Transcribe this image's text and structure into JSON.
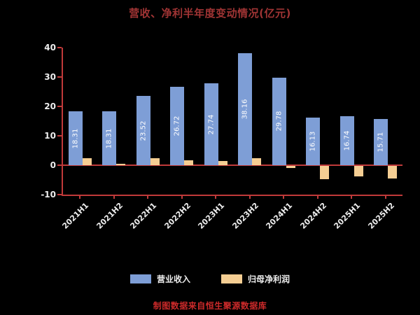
{
  "chart_data": {
    "type": "bar",
    "title": "营收、净利半年度变动情况(亿元)",
    "footer": "制图数据来自恒生聚源数据库",
    "categories": [
      "2021H1",
      "2021H2",
      "2022H1",
      "2022H2",
      "2023H1",
      "2023H2",
      "2024H1",
      "2024H2",
      "2025H1",
      "2025H2"
    ],
    "series": [
      {
        "name": "营业收入",
        "color": "#7E9ED6",
        "values": [
          18.31,
          18.31,
          23.52,
          26.72,
          27.74,
          38.16,
          29.78,
          16.13,
          16.74,
          15.71
        ],
        "labels_visible": true
      },
      {
        "name": "归母净利润",
        "color": "#F5CE93",
        "values": [
          2.4,
          0.5,
          2.4,
          1.6,
          1.4,
          2.4,
          -0.7,
          -4.5,
          -3.6,
          -4.3
        ],
        "labels_visible": false
      }
    ],
    "ylim": [
      -10,
      40
    ],
    "yticks": [
      -10,
      0,
      10,
      20,
      30,
      40
    ],
    "legend_position": "bottom",
    "grid": false,
    "colors": {
      "background": "#000000",
      "title": "#A03434",
      "axis": "#C03A3A",
      "tick_text": "#EDEDED",
      "bar_label_text": "#FFFFFF",
      "footer": "#CC2A2A"
    }
  }
}
